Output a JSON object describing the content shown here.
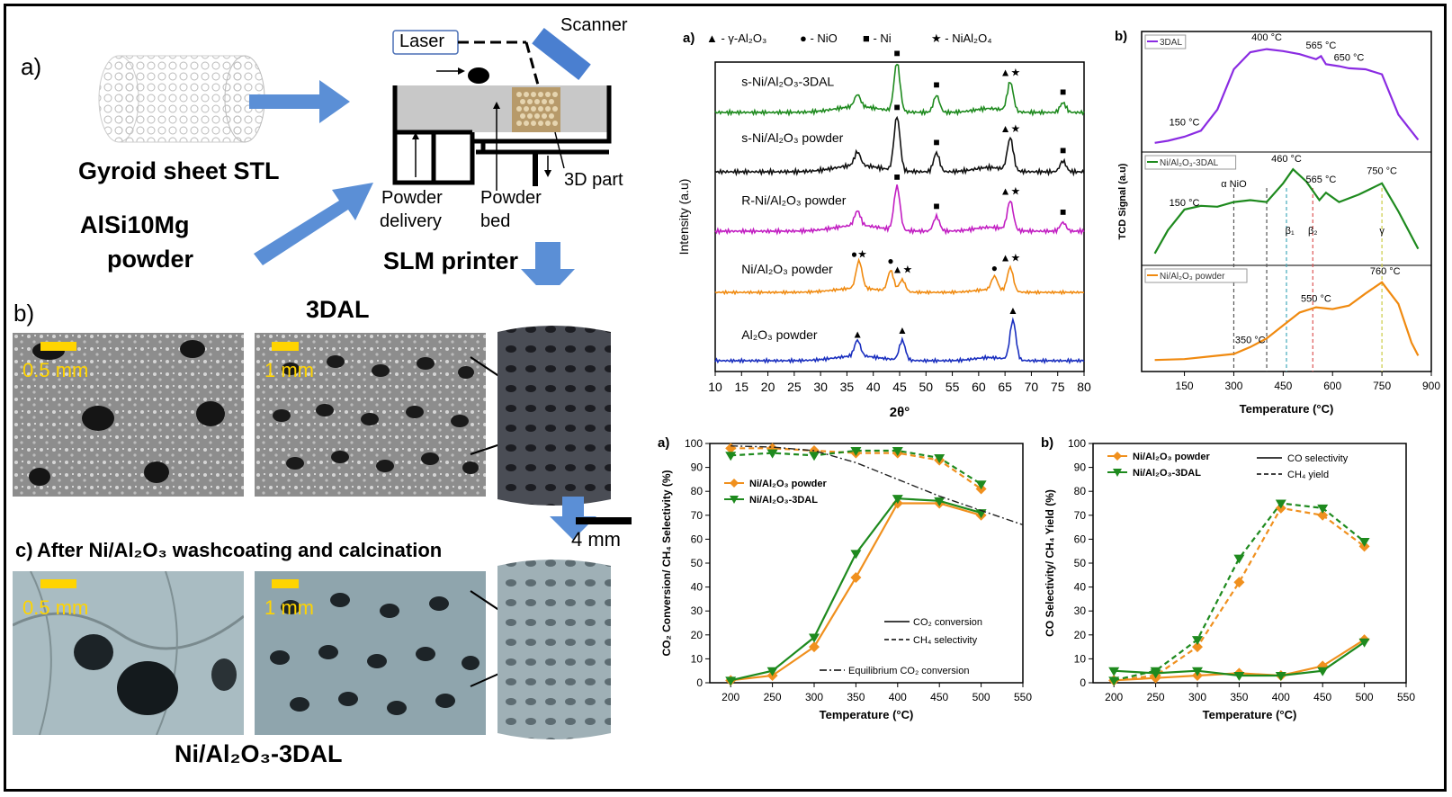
{
  "schematic": {
    "label_a": "a)",
    "stl_caption": "Gyroid sheet STL",
    "powder_caption_1": "AlSi10Mg",
    "powder_caption_2": "powder",
    "laser": "Laser",
    "scanner": "Scanner",
    "delivery_1": "Powder",
    "delivery_2": "delivery",
    "bed_1": "Powder",
    "bed_2": "bed",
    "part": "3D part",
    "printer": "SLM printer"
  },
  "photos": {
    "label_b": "b)",
    "title_b": "3DAL",
    "scale_b1": "0.5 mm",
    "scale_b2": "1 mm",
    "scale_4mm": "4 mm",
    "label_c": "c)",
    "title_c": "After Ni/Al₂O₃ washcoating and calcination",
    "scale_c1": "0.5 mm",
    "scale_c2": "1 mm",
    "caption_c": "Ni/Al₂O₃-3DAL"
  },
  "chart_data": [
    {
      "id": "xrd",
      "type": "line",
      "panel": "a)",
      "xlabel": "2θ°",
      "ylabel": "Intensity (a.u)",
      "xlim": [
        10,
        80
      ],
      "xticks": [
        10,
        15,
        20,
        25,
        30,
        35,
        40,
        45,
        50,
        55,
        60,
        65,
        70,
        75,
        80
      ],
      "legend": [
        "▲ - γ-Al₂O₃",
        "● - NiO",
        "■ - Ni",
        "★ - NiAl₂O₄"
      ],
      "series": [
        {
          "name": "s-Ni/Al₂O₃-3DAL",
          "color": "#1e8a1e",
          "peaks": [
            [
              37,
              0.25
            ],
            [
              44.5,
              1.0
            ],
            [
              52,
              0.35
            ],
            [
              66,
              0.6
            ],
            [
              76,
              0.2
            ]
          ],
          "markers": [
            [
              44.5,
              "■"
            ],
            [
              52,
              "■"
            ],
            [
              66,
              "▲★"
            ],
            [
              76,
              "■"
            ]
          ]
        },
        {
          "name": "s-Ni/Al₂O₃ powder",
          "color": "#111111",
          "peaks": [
            [
              37,
              0.25
            ],
            [
              44.5,
              1.0
            ],
            [
              52,
              0.35
            ],
            [
              66,
              0.6
            ],
            [
              76,
              0.2
            ]
          ],
          "markers": [
            [
              44.5,
              "■"
            ],
            [
              52,
              "■"
            ],
            [
              66,
              "▲★"
            ],
            [
              76,
              "■"
            ]
          ]
        },
        {
          "name": "R-Ni/Al₂O₃ powder",
          "color": "#c21ec2",
          "peaks": [
            [
              37,
              0.3
            ],
            [
              44.5,
              0.9
            ],
            [
              52,
              0.3
            ],
            [
              66,
              0.6
            ],
            [
              76,
              0.18
            ]
          ],
          "markers": [
            [
              44.5,
              "■"
            ],
            [
              52,
              "■"
            ],
            [
              66,
              "▲★"
            ],
            [
              76,
              "■"
            ]
          ]
        },
        {
          "name": "Ni/Al₂O₃ powder",
          "color": "#f08a10",
          "peaks": [
            [
              37.3,
              0.8
            ],
            [
              43.3,
              0.6
            ],
            [
              45.5,
              0.35
            ],
            [
              63,
              0.4
            ],
            [
              66,
              0.7
            ]
          ],
          "markers": [
            [
              37.3,
              "●★"
            ],
            [
              43.3,
              "●"
            ],
            [
              45.5,
              "▲★"
            ],
            [
              63,
              "●"
            ],
            [
              66,
              "▲★"
            ]
          ]
        },
        {
          "name": "Al₂O₃ powder",
          "color": "#1a2fbf",
          "peaks": [
            [
              37,
              0.4
            ],
            [
              45.5,
              0.5
            ],
            [
              66.5,
              1.0
            ]
          ],
          "markers": [
            [
              37,
              "▲"
            ],
            [
              45.5,
              "▲"
            ],
            [
              66.5,
              "▲"
            ]
          ]
        }
      ]
    },
    {
      "id": "tpr",
      "type": "line",
      "panel": "b)",
      "xlabel": "Temperature (°C)",
      "ylabel": "TCD Signal (a.u)",
      "xlim": [
        20,
        900
      ],
      "xticks": [
        150,
        300,
        450,
        600,
        750,
        900
      ],
      "subplots": [
        {
          "name": "3DAL",
          "color": "#8a2be2",
          "x": [
            60,
            100,
            150,
            200,
            250,
            300,
            350,
            400,
            450,
            500,
            550,
            565,
            580,
            620,
            650,
            700,
            750,
            800,
            860
          ],
          "y": [
            0.02,
            0.04,
            0.08,
            0.14,
            0.35,
            0.75,
            0.92,
            0.95,
            0.93,
            0.9,
            0.85,
            0.88,
            0.8,
            0.78,
            0.76,
            0.75,
            0.7,
            0.3,
            0.05
          ],
          "annotations": [
            "150 °C",
            "400 °C",
            "565 °C",
            "650 °C"
          ]
        },
        {
          "name": "Ni/Al₂O₃-3DAL",
          "color": "#1e8a1e",
          "x": [
            60,
            100,
            150,
            200,
            250,
            300,
            350,
            400,
            450,
            480,
            520,
            560,
            580,
            620,
            680,
            750,
            800,
            860
          ],
          "y": [
            0.05,
            0.3,
            0.52,
            0.56,
            0.55,
            0.6,
            0.62,
            0.6,
            0.8,
            0.95,
            0.82,
            0.62,
            0.7,
            0.6,
            0.68,
            0.8,
            0.5,
            0.1
          ],
          "annotations": [
            "150 °C",
            "α NiO",
            "460 °C",
            "565 °C",
            "750 °C",
            "β₁",
            "β₂",
            "γ"
          ]
        },
        {
          "name": "Ni/Al₂O₃ powder",
          "color": "#f08a10",
          "x": [
            60,
            150,
            250,
            300,
            350,
            400,
            450,
            500,
            550,
            600,
            650,
            700,
            750,
            800,
            840,
            860
          ],
          "y": [
            0.05,
            0.06,
            0.1,
            0.12,
            0.2,
            0.3,
            0.45,
            0.6,
            0.66,
            0.64,
            0.68,
            0.82,
            0.95,
            0.7,
            0.25,
            0.1
          ],
          "annotations": [
            "350 °C",
            "550 °C",
            "760 °C"
          ]
        }
      ],
      "guides": [
        300,
        400,
        460,
        540,
        750
      ]
    },
    {
      "id": "conv",
      "type": "line",
      "panel": "a)",
      "xlabel": "Temperature (°C)",
      "ylabel": "CO₂ Conversion/ CH₄ Selectivity (%)",
      "xlim": [
        175,
        550
      ],
      "ylim": [
        0,
        100
      ],
      "xticks": [
        200,
        250,
        300,
        350,
        400,
        450,
        500,
        550
      ],
      "yticks": [
        0,
        10,
        20,
        30,
        40,
        50,
        60,
        70,
        80,
        90,
        100
      ],
      "x": [
        200,
        250,
        300,
        350,
        400,
        450,
        500
      ],
      "series": [
        {
          "name": "Ni/Al₂O₃ powder",
          "color": "#f0901e",
          "marker": "diamond",
          "conversion": [
            1,
            3,
            15,
            44,
            75,
            75,
            70
          ],
          "selectivity": [
            98,
            98,
            97,
            96,
            96,
            93,
            81
          ]
        },
        {
          "name": "Ni/Al₂O₃-3DAL",
          "color": "#1e8a1e",
          "marker": "tri-down",
          "conversion": [
            1,
            5,
            19,
            54,
            77,
            76,
            71
          ],
          "selectivity": [
            95,
            96,
            95,
            97,
            97,
            94,
            83
          ]
        }
      ],
      "equilibrium": {
        "x": [
          200,
          250,
          300,
          350,
          400,
          450,
          500,
          550
        ],
        "y": [
          99,
          98.5,
          97,
          92,
          85,
          78,
          72,
          66
        ]
      },
      "line_legend": [
        "CO₂ conversion",
        "CH₄ selectivity",
        "Equilibrium CO₂ conversion"
      ]
    },
    {
      "id": "yield",
      "type": "line",
      "panel": "b)",
      "xlabel": "Temperature (°C)",
      "ylabel": "CO Selectivity/ CH₄ Yield (%)",
      "xlim": [
        175,
        550
      ],
      "ylim": [
        0,
        100
      ],
      "xticks": [
        200,
        250,
        300,
        350,
        400,
        450,
        500,
        550
      ],
      "yticks": [
        0,
        10,
        20,
        30,
        40,
        50,
        60,
        70,
        80,
        90,
        100
      ],
      "x": [
        200,
        250,
        300,
        350,
        400,
        450,
        500
      ],
      "series": [
        {
          "name": "Ni/Al₂O₃ powder",
          "color": "#f0901e",
          "marker": "diamond",
          "co_selectivity": [
            1,
            2,
            3,
            4,
            3,
            7,
            18
          ],
          "ch4_yield": [
            1,
            3,
            15,
            42,
            73,
            70,
            57
          ]
        },
        {
          "name": "Ni/Al₂O₃-3DAL",
          "color": "#1e8a1e",
          "marker": "tri-down",
          "co_selectivity": [
            5,
            4,
            5,
            3,
            3,
            5,
            17
          ],
          "ch4_yield": [
            1,
            5,
            18,
            52,
            75,
            73,
            59
          ]
        }
      ],
      "line_legend": [
        "CO selectivity",
        "CH₄ yield"
      ]
    }
  ]
}
